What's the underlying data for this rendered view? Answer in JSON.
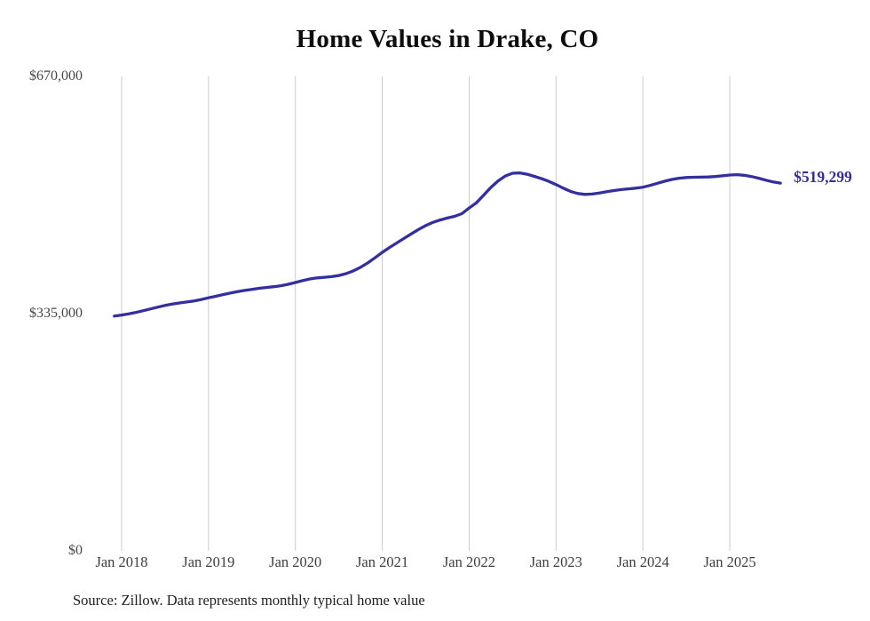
{
  "source_note": "Source: Zillow. Data represents monthly typical home value",
  "colors": {
    "line": "#332f9f",
    "grid": "#cbcbcb",
    "title_text": "#0d0d0d",
    "axis_text": "#3e3e3e",
    "source_text": "#1e1e1e",
    "background": "#ffffff"
  },
  "chart_data": {
    "type": "line",
    "title": "Home Values in Drake, CO",
    "xlabel": "",
    "ylabel": "",
    "ylim": [
      0,
      670000
    ],
    "grid": "vertical-only",
    "legend": "none",
    "end_label": "$519,299",
    "x_tick_labels": [
      "Jan 2018",
      "Jan 2019",
      "Jan 2020",
      "Jan 2021",
      "Jan 2022",
      "Jan 2023",
      "Jan 2024",
      "Jan 2025"
    ],
    "y_ticks": [
      {
        "label": "$670,000",
        "value": 670000
      },
      {
        "label": "$335,000",
        "value": 335000
      },
      {
        "label": "$0",
        "value": 0
      }
    ],
    "series": [
      {
        "name": "Monthly typical home value",
        "interval": "monthly",
        "start_month": "2017-12",
        "end_month": "2025-08",
        "x_offset_months": -1,
        "values": [
          331500,
          333000,
          334700,
          336800,
          339200,
          341700,
          344200,
          346500,
          348400,
          350000,
          351400,
          352900,
          354900,
          357300,
          359500,
          361800,
          364000,
          366000,
          367800,
          369300,
          370700,
          371900,
          373000,
          374400,
          376400,
          378900,
          381600,
          383900,
          385400,
          386300,
          387200,
          388800,
          391500,
          395400,
          400400,
          406600,
          413800,
          421400,
          428300,
          434800,
          441200,
          447600,
          453800,
          459300,
          463800,
          467300,
          470000,
          472400,
          476200,
          484000,
          491500,
          502300,
          513200,
          522500,
          529300,
          533200,
          533800,
          531800,
          528800,
          525600,
          521800,
          517300,
          512200,
          507600,
          504600,
          503400,
          503900,
          505400,
          507200,
          508800,
          510100,
          511100,
          512100,
          513600,
          516000,
          519000,
          522000,
          524500,
          526200,
          527200,
          527600,
          527700,
          528000,
          528600,
          529600,
          530700,
          531200,
          530400,
          528600,
          526200,
          523400,
          521000,
          519299
        ]
      }
    ]
  }
}
